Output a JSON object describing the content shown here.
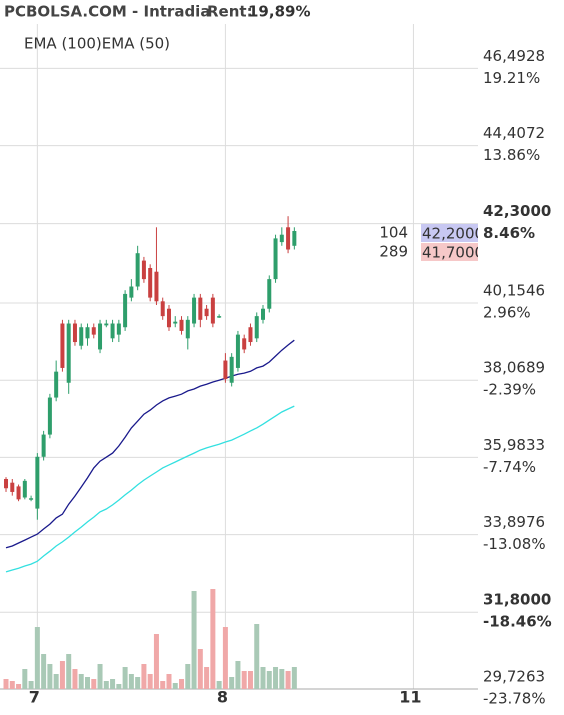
{
  "chart_data": {
    "type": "candlestick",
    "title": "PCBOLSA.COM - Intradia",
    "rent_label": "Rent:",
    "rent_value": "19,89%",
    "candles": {
      "open": [
        35.4,
        35.3,
        35.2,
        34.9,
        34.85,
        34.6,
        36.0,
        36.6,
        37.6,
        39.6,
        38.0,
        39.6,
        39.0,
        39.2,
        39.5,
        38.9,
        39.55,
        39.2,
        39.3,
        39.5,
        40.3,
        40.6,
        41.3,
        41.1,
        41.0,
        40.2,
        40.0,
        39.6,
        39.7,
        39.2,
        39.6,
        40.3,
        40.0,
        40.3,
        39.8,
        38.6,
        38.0,
        38.4,
        39.2,
        39.5,
        39.2,
        39.7,
        40.0,
        40.8,
        41.8,
        42.2,
        41.7
      ],
      "high": [
        35.45,
        35.4,
        35.25,
        35.4,
        34.95,
        36.1,
        36.7,
        37.7,
        38.6,
        39.7,
        39.7,
        39.7,
        39.6,
        39.6,
        39.6,
        39.7,
        39.7,
        39.7,
        39.7,
        40.5,
        40.8,
        41.7,
        41.4,
        41.2,
        42.2,
        40.3,
        40.1,
        39.8,
        39.8,
        39.8,
        40.4,
        40.4,
        40.1,
        40.4,
        39.85,
        38.8,
        38.8,
        39.4,
        39.3,
        39.6,
        39.9,
        40.1,
        40.9,
        42.0,
        42.2,
        42.5,
        42.2
      ],
      "low": [
        35.05,
        34.95,
        34.8,
        34.85,
        34.8,
        34.3,
        35.9,
        36.5,
        37.5,
        38.3,
        37.7,
        39.0,
        38.9,
        39.0,
        39.2,
        38.8,
        39.5,
        39.1,
        39.1,
        39.4,
        40.2,
        40.5,
        40.7,
        40.2,
        40.1,
        39.7,
        39.4,
        39.5,
        39.3,
        38.9,
        39.5,
        39.5,
        39.7,
        39.5,
        39.75,
        38.0,
        37.9,
        38.3,
        38.8,
        39.0,
        39.1,
        39.6,
        39.9,
        40.7,
        41.7,
        41.5,
        41.6
      ],
      "close": [
        35.15,
        35.05,
        34.85,
        35.35,
        34.88,
        36.0,
        36.6,
        37.6,
        38.3,
        38.4,
        39.6,
        39.1,
        39.5,
        39.5,
        39.3,
        39.6,
        39.6,
        39.6,
        39.6,
        40.4,
        40.6,
        41.5,
        40.8,
        40.3,
        40.2,
        39.8,
        39.5,
        39.65,
        39.4,
        39.7,
        40.3,
        39.7,
        39.8,
        39.6,
        39.8,
        38.1,
        38.7,
        39.3,
        38.9,
        39.1,
        39.8,
        40.0,
        40.8,
        41.9,
        42.0,
        41.6,
        42.1
      ],
      "up_color": "#2e9e6b",
      "down_color": "#c94040"
    },
    "volume": {
      "values": [
        10,
        8,
        5,
        20,
        8,
        62,
        35,
        25,
        15,
        28,
        35,
        20,
        15,
        12,
        10,
        25,
        8,
        10,
        5,
        22,
        15,
        12,
        25,
        15,
        55,
        8,
        15,
        6,
        10,
        25,
        98,
        40,
        22,
        100,
        8,
        62,
        12,
        28,
        18,
        18,
        65,
        22,
        18,
        22,
        20,
        18,
        22
      ],
      "lim": [
        0,
        110
      ],
      "up_color": "#a9c9b6",
      "down_color": "#f0a8a8"
    },
    "series": [
      {
        "name": "EMA (100)",
        "color": "#33e0e0",
        "values": [
          32.89,
          32.94,
          32.99,
          33.05,
          33.1,
          33.18,
          33.32,
          33.45,
          33.59,
          33.7,
          33.83,
          33.97,
          34.1,
          34.24,
          34.37,
          34.51,
          34.59,
          34.7,
          34.83,
          34.97,
          35.1,
          35.24,
          35.37,
          35.48,
          35.59,
          35.7,
          35.78,
          35.86,
          35.94,
          36.02,
          36.1,
          36.18,
          36.24,
          36.29,
          36.34,
          36.4,
          36.45,
          36.53,
          36.61,
          36.7,
          36.78,
          36.88,
          36.99,
          37.1,
          37.21,
          37.29,
          37.37
        ]
      },
      {
        "name": "EMA (50)",
        "color": "#1a1a8c",
        "values": [
          33.54,
          33.59,
          33.67,
          33.75,
          33.83,
          33.91,
          34.05,
          34.18,
          34.35,
          34.45,
          34.72,
          34.94,
          35.18,
          35.43,
          35.7,
          35.88,
          35.99,
          36.1,
          36.29,
          36.53,
          36.78,
          36.96,
          37.15,
          37.26,
          37.4,
          37.51,
          37.59,
          37.64,
          37.69,
          37.78,
          37.83,
          37.91,
          37.96,
          38.02,
          38.07,
          38.12,
          38.18,
          38.23,
          38.26,
          38.31,
          38.4,
          38.45,
          38.56,
          38.72,
          38.88,
          39.02,
          39.15
        ]
      }
    ],
    "xticks": [
      {
        "value": 5,
        "label": "7"
      },
      {
        "value": 35,
        "label": "8"
      },
      {
        "value": 65,
        "label": "11"
      }
    ],
    "xlim": [
      -0.96,
      75.3
    ],
    "ylim": [
      29.7263,
      47.53
    ],
    "yticks": [
      {
        "value": 29.7263,
        "label": "29,7263"
      },
      {
        "value": 31.8,
        "label": "31,8000",
        "bold": true
      },
      {
        "value": 33.8976,
        "label": "33,8976"
      },
      {
        "value": 35.9833,
        "label": "35,9833"
      },
      {
        "value": 38.0689,
        "label": "38,0689"
      },
      {
        "value": 40.1546,
        "label": "40,1546"
      },
      {
        "value": 42.3,
        "label": "42,3000",
        "bold": true
      },
      {
        "value": 44.4072,
        "label": "44,4072"
      },
      {
        "value": 46.4928,
        "label": "46,4928"
      }
    ],
    "y2lim": [
      -23.78,
      21.87
    ],
    "y2ticks": [
      {
        "value": -23.78,
        "label": "-23.78%"
      },
      {
        "value": -18.46,
        "label": "-18.46%",
        "bold": true
      },
      {
        "value": -13.08,
        "label": "-13.08%"
      },
      {
        "value": -7.74,
        "label": "-7.74%"
      },
      {
        "value": -2.39,
        "label": "-2.39%"
      },
      {
        "value": 2.96,
        "label": "2.96%"
      },
      {
        "value": 8.46,
        "label": "8.46%",
        "bold": true
      },
      {
        "value": 13.86,
        "label": "13.86%"
      },
      {
        "value": 19.21,
        "label": "19.21%"
      }
    ],
    "positive_color": "#2e9e6b",
    "negative_color": "#d03c3c",
    "order_book": [
      {
        "size": "104",
        "price": "42,2000",
        "color": "#c8c8f2"
      },
      {
        "size": "289",
        "price": "41,7000",
        "color": "#f6c8c8"
      }
    ],
    "grid": true
  }
}
